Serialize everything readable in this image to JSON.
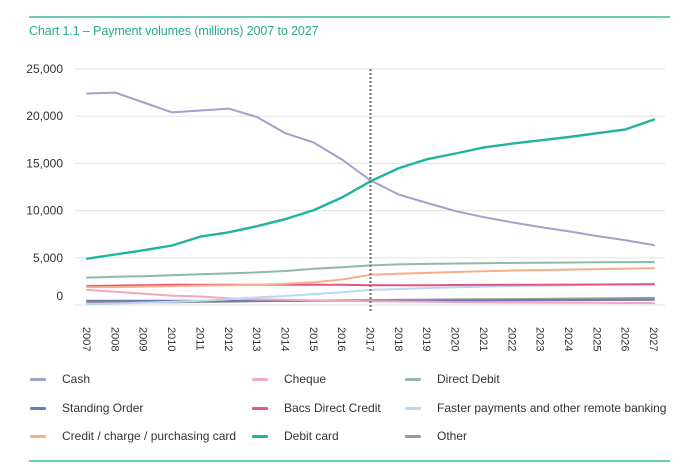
{
  "title": "Chart 1.1 – Payment volumes (millions) 2007 to 2027",
  "chart_data": {
    "type": "line",
    "title": "Chart 1.1 – Payment volumes (millions) 2007 to 2027",
    "xlabel": "",
    "ylabel": "",
    "ylim": [
      0,
      25000
    ],
    "yticks": [
      0,
      5000,
      10000,
      15000,
      20000,
      25000
    ],
    "ytick_labels": [
      "0",
      "5,000",
      "10,000",
      "15,000",
      "20,000",
      "25,000"
    ],
    "grid": true,
    "legend_position": "bottom",
    "annotations": [
      {
        "type": "vertical-dotted-line",
        "x": "2017",
        "meaning": "actuals / forecast divider"
      }
    ],
    "x": [
      "2007",
      "2008",
      "2009",
      "2010",
      "2011",
      "2012",
      "2013",
      "2014",
      "2015",
      "2016",
      "2017",
      "2018",
      "2019",
      "2020",
      "2021",
      "2022",
      "2023",
      "2024",
      "2025",
      "2026",
      "2027"
    ],
    "series": [
      {
        "name": "Cash",
        "color": "#9fa3c9",
        "values": [
          22400,
          22500,
          21450,
          20400,
          20600,
          20800,
          19900,
          18200,
          17200,
          15400,
          13200,
          11700,
          10800,
          9950,
          9300,
          8750,
          8250,
          7800,
          7300,
          6850,
          6350
        ]
      },
      {
        "name": "Cheque",
        "color": "#f2a7bd",
        "values": [
          1600,
          1400,
          1200,
          1000,
          900,
          700,
          600,
          550,
          500,
          450,
          400,
          370,
          340,
          310,
          290,
          270,
          250,
          240,
          230,
          215,
          200
        ]
      },
      {
        "name": "Direct Debit",
        "color": "#8fb9a8",
        "values": [
          2900,
          3000,
          3050,
          3150,
          3250,
          3350,
          3450,
          3600,
          3850,
          4000,
          4200,
          4300,
          4350,
          4400,
          4430,
          4460,
          4480,
          4500,
          4520,
          4540,
          4550
        ]
      },
      {
        "name": "Standing Order",
        "color": "#6f78b8",
        "values": [
          450,
          450,
          440,
          440,
          430,
          430,
          430,
          430,
          440,
          440,
          450,
          460,
          470,
          480,
          490,
          500,
          510,
          520,
          530,
          540,
          550
        ]
      },
      {
        "name": "Bacs Direct Credit",
        "color": "#e9557a",
        "values": [
          2000,
          2050,
          2100,
          2150,
          2150,
          2150,
          2150,
          2150,
          2150,
          2150,
          2100,
          2100,
          2100,
          2120,
          2130,
          2140,
          2150,
          2160,
          2170,
          2180,
          2200
        ]
      },
      {
        "name": "Faster payments and other remote banking",
        "color": "#b9d7f1",
        "values": [
          100,
          150,
          250,
          350,
          450,
          600,
          800,
          950,
          1150,
          1350,
          1600,
          1700,
          1800,
          1880,
          1950,
          2010,
          2060,
          2100,
          2150,
          2200,
          2250
        ]
      },
      {
        "name": "Credit / charge / purchasing card",
        "color": "#f5b08a",
        "values": [
          1900,
          1900,
          1950,
          2000,
          2050,
          2100,
          2150,
          2250,
          2400,
          2700,
          3200,
          3300,
          3400,
          3500,
          3580,
          3650,
          3700,
          3750,
          3800,
          3850,
          3900
        ]
      },
      {
        "name": "Debit card",
        "color": "#1fb49b",
        "values": [
          4900,
          5350,
          5800,
          6300,
          7250,
          7700,
          8350,
          9100,
          10050,
          11400,
          13100,
          14500,
          15450,
          16050,
          16700,
          17100,
          17450,
          17800,
          18200,
          18600,
          19650
        ]
      },
      {
        "name": "Other",
        "color": "#9a9a9a",
        "values": [
          300,
          300,
          300,
          300,
          320,
          350,
          400,
          450,
          480,
          500,
          520,
          550,
          570,
          590,
          610,
          630,
          650,
          680,
          700,
          730,
          750
        ]
      }
    ]
  },
  "legend": [
    {
      "label": "Cash",
      "color": "#9fa3c9"
    },
    {
      "label": "Cheque",
      "color": "#f2a7bd"
    },
    {
      "label": "Direct Debit",
      "color": "#8fb9a8"
    },
    {
      "label": "Standing Order",
      "color": "#6f78b8"
    },
    {
      "label": "Bacs Direct Credit",
      "color": "#e9557a"
    },
    {
      "label": "Faster payments and other remote banking",
      "color": "#b9d7f1"
    },
    {
      "label": "Credit / charge / purchasing card",
      "color": "#f5b08a"
    },
    {
      "label": "Debit card",
      "color": "#1fb49b"
    },
    {
      "label": "Other",
      "color": "#9a9a9a"
    }
  ],
  "colors": {
    "accent": "#27a98e",
    "rule": "#6ccbb4",
    "grid": "#e6e6e6",
    "divider": "#777777"
  }
}
